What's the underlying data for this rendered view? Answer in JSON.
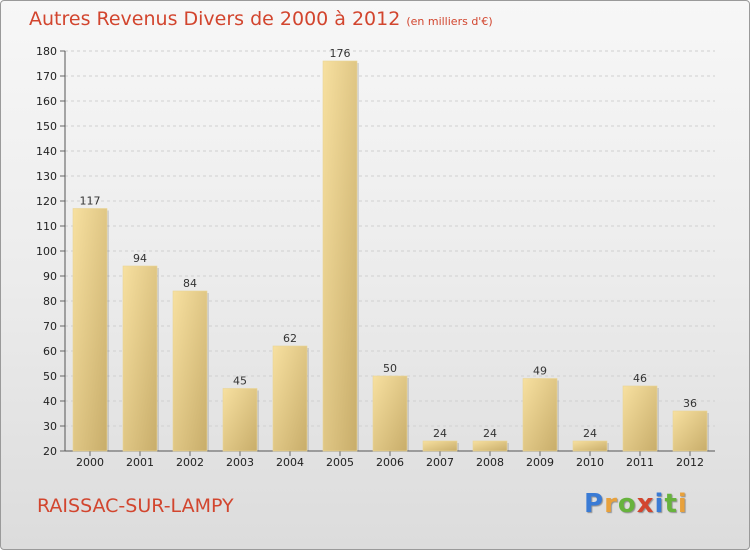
{
  "header": {
    "title": "Autres Revenus Divers de 2000 à 2012",
    "subtitle": "(en milliers d'€)"
  },
  "footer": {
    "place": "RAISSAC-SUR-LAMPY",
    "logo_letters": [
      "P",
      "r",
      "o",
      "x",
      "i",
      "t",
      "i"
    ]
  },
  "colors": {
    "title": "#d2452e",
    "bar_light": "#f7e0a0",
    "bar_dark": "#c8ad6a"
  },
  "chart_data": {
    "type": "bar",
    "title": "Autres Revenus Divers de 2000 à 2012",
    "xlabel": "",
    "ylabel": "",
    "categories": [
      "2000",
      "2001",
      "2002",
      "2003",
      "2004",
      "2005",
      "2006",
      "2007",
      "2008",
      "2009",
      "2010",
      "2011",
      "2012"
    ],
    "values": [
      117,
      94,
      84,
      45,
      62,
      176,
      50,
      24,
      24,
      49,
      24,
      46,
      36
    ],
    "ylim": [
      20,
      180
    ],
    "yticks": [
      20,
      30,
      40,
      50,
      60,
      70,
      80,
      90,
      100,
      110,
      120,
      130,
      140,
      150,
      160,
      170,
      180
    ],
    "grid": true
  }
}
